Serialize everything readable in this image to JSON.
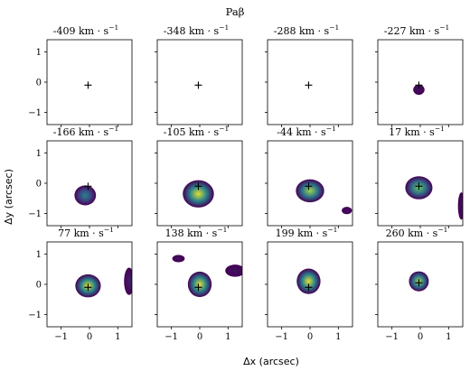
{
  "title": "Paβ",
  "xlabel": "Δx (arcsec)",
  "ylabel": "Δy (arcsec)",
  "velocity_unit": "km · s",
  "velocity_exponent": "−1",
  "colormap": [
    "#440154",
    "#3b528b",
    "#21918c",
    "#5ec962",
    "#fde725"
  ],
  "chart_data": {
    "type": "heatmap",
    "title": "Paβ",
    "xlabel": "Δx (arcsec)",
    "ylabel": "Δy (arcsec)",
    "xlim": [
      -1.5,
      1.5
    ],
    "ylim": [
      -1.4,
      1.4
    ],
    "xticks": [
      "−1",
      "0",
      "1"
    ],
    "yticks": [
      "1",
      "0",
      "−1"
    ],
    "grid": false,
    "marker": "+ at continuum centre",
    "panels": [
      {
        "velocity": "-409",
        "marker": [
          -0.05,
          -0.1
        ],
        "blobs": []
      },
      {
        "velocity": "-348",
        "marker": [
          -0.05,
          -0.1
        ],
        "blobs": []
      },
      {
        "velocity": "-288",
        "marker": [
          -0.05,
          -0.1
        ],
        "blobs": []
      },
      {
        "velocity": "-227",
        "marker": [
          -0.05,
          -0.1
        ],
        "blobs": [
          {
            "cx": -0.05,
            "cy": -0.25,
            "rx": 0.2,
            "ry": 0.17,
            "peak": 0.05
          }
        ]
      },
      {
        "velocity": "-166",
        "marker": [
          -0.05,
          -0.1
        ],
        "blobs": [
          {
            "cx": -0.15,
            "cy": -0.4,
            "rx": 0.38,
            "ry": 0.33,
            "peak": 0.45
          }
        ]
      },
      {
        "velocity": "-105",
        "marker": [
          -0.05,
          -0.1
        ],
        "blobs": [
          {
            "cx": -0.05,
            "cy": -0.35,
            "rx": 0.55,
            "ry": 0.45,
            "peak": 0.95
          }
        ]
      },
      {
        "velocity": "-44",
        "marker": [
          -0.05,
          -0.1
        ],
        "blobs": [
          {
            "cx": 0.0,
            "cy": -0.25,
            "rx": 0.5,
            "ry": 0.38,
            "peak": 0.85
          },
          {
            "cx": 1.3,
            "cy": -0.9,
            "rx": 0.18,
            "ry": 0.12,
            "peak": 0.05
          }
        ]
      },
      {
        "velocity": "17",
        "marker": [
          -0.05,
          -0.1
        ],
        "blobs": [
          {
            "cx": -0.05,
            "cy": -0.15,
            "rx": 0.48,
            "ry": 0.38,
            "peak": 0.75
          },
          {
            "cx": 1.45,
            "cy": -0.75,
            "rx": 0.12,
            "ry": 0.45,
            "peak": 0.05
          }
        ]
      },
      {
        "velocity": "77",
        "marker": [
          -0.05,
          -0.1
        ],
        "blobs": [
          {
            "cx": -0.05,
            "cy": -0.05,
            "rx": 0.45,
            "ry": 0.38,
            "peak": 0.95
          },
          {
            "cx": 1.4,
            "cy": 0.1,
            "rx": 0.18,
            "ry": 0.45,
            "peak": 0.1
          }
        ]
      },
      {
        "velocity": "138",
        "marker": [
          -0.05,
          -0.1
        ],
        "blobs": [
          {
            "cx": 0.0,
            "cy": -0.0,
            "rx": 0.42,
            "ry": 0.42,
            "peak": 0.95
          },
          {
            "cx": -0.75,
            "cy": 0.85,
            "rx": 0.22,
            "ry": 0.12,
            "peak": 0.05
          },
          {
            "cx": 1.25,
            "cy": 0.45,
            "rx": 0.35,
            "ry": 0.2,
            "peak": 0.05
          }
        ]
      },
      {
        "velocity": "199",
        "marker": [
          -0.05,
          -0.1
        ],
        "blobs": [
          {
            "cx": -0.05,
            "cy": 0.1,
            "rx": 0.42,
            "ry": 0.42,
            "peak": 0.95
          }
        ]
      },
      {
        "velocity": "260",
        "marker": [
          -0.05,
          0.05
        ],
        "blobs": [
          {
            "cx": -0.05,
            "cy": 0.1,
            "rx": 0.35,
            "ry": 0.33,
            "peak": 0.85
          }
        ]
      }
    ]
  }
}
